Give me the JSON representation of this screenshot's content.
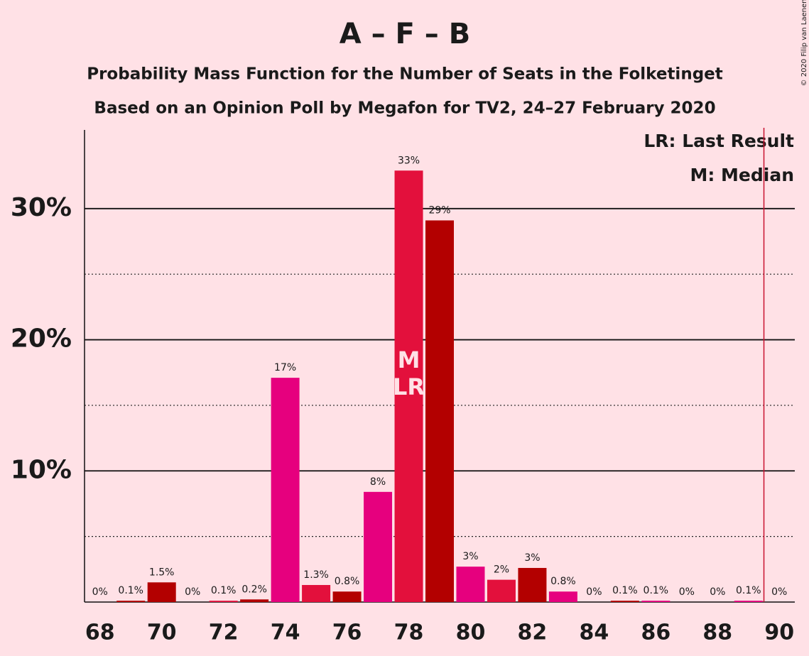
{
  "chart_data": {
    "type": "bar",
    "title": "A – F – B",
    "subtitle": "Probability Mass Function for the Number of Seats in the Folketinget",
    "subtitle2": "Based on an Opinion Poll by Megafon for TV2, 24–27 February 2020",
    "copyright": "© 2020 Filip van Laenen",
    "legend": [
      "LR: Last Result",
      "M: Median"
    ],
    "x": [
      68,
      69,
      70,
      71,
      72,
      73,
      74,
      75,
      76,
      77,
      78,
      79,
      80,
      81,
      82,
      83,
      84,
      85,
      86,
      87,
      88,
      89,
      90
    ],
    "values": [
      0,
      0.1,
      1.5,
      0,
      0.1,
      0.2,
      17.1,
      1.3,
      0.8,
      8.4,
      32.9,
      29.1,
      2.7,
      1.7,
      2.6,
      0.8,
      0,
      0.1,
      0.1,
      0,
      0,
      0.1,
      0
    ],
    "value_labels": [
      "0%",
      "0.1%",
      "1.5%",
      "0%",
      "0.1%",
      "0.2%",
      "17%",
      "1.3%",
      "0.8%",
      "8%",
      "33%",
      "29%",
      "3%",
      "2%",
      "3%",
      "0.8%",
      "0%",
      "0.1%",
      "0.1%",
      "0%",
      "0%",
      "0.1%",
      "0%"
    ],
    "colors": [
      "#e3103c",
      "#b30000",
      "#b30000",
      "#e6007e",
      "#e3103c",
      "#b30000",
      "#e6007e",
      "#e3103c",
      "#b30000",
      "#e6007e",
      "#e3103c",
      "#b30000",
      "#e6007e",
      "#e3103c",
      "#b30000",
      "#e6007e",
      "#e3103c",
      "#b30000",
      "#e6007e",
      "#e3103c",
      "#b30000",
      "#e6007e",
      "#e3103c"
    ],
    "markers": [
      {
        "label": "M",
        "x": 78
      },
      {
        "label": "LR",
        "x": 78
      }
    ],
    "majority_line": 89.5,
    "majority_color": "#c8102e",
    "xlim": [
      67.5,
      90.5
    ],
    "xticks": [
      68,
      70,
      72,
      74,
      76,
      78,
      80,
      82,
      84,
      86,
      88,
      90
    ],
    "ylim": [
      0,
      36
    ],
    "yticks": [
      {
        "value": 10,
        "label": "10%"
      },
      {
        "value": 20,
        "label": "20%"
      },
      {
        "value": 30,
        "label": "30%"
      }
    ],
    "minor_yticks": [
      5,
      15,
      25
    ],
    "grid": true
  }
}
